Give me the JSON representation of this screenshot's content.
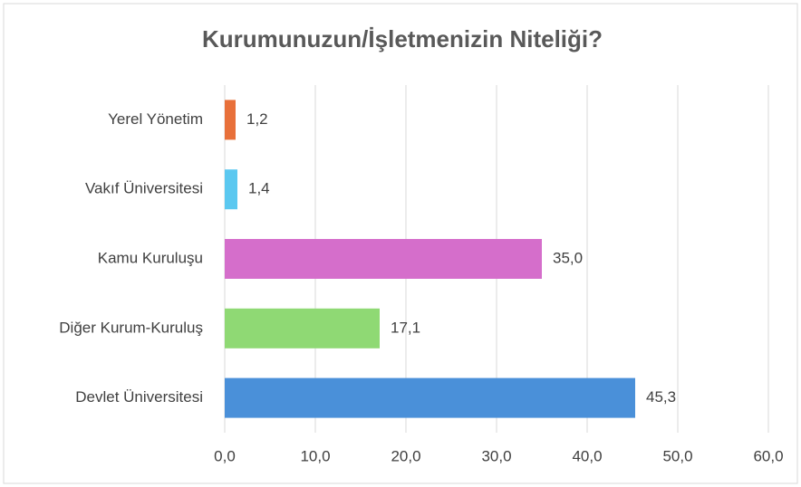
{
  "chart_data": {
    "type": "barh",
    "title": "Kurumunuzun/İşletmenizin Niteliği?",
    "categories": [
      "Yerel Yönetim",
      "Vakıf Üniversitesi",
      "Kamu Kuruluşu",
      "Diğer Kurum-Kuruluş",
      "Devlet Üniversitesi"
    ],
    "values": [
      1.2,
      1.4,
      35.0,
      17.1,
      45.3
    ],
    "value_labels": [
      "1,2",
      "1,4",
      "35,0",
      "17,1",
      "45,3"
    ],
    "colors": [
      "#e8703a",
      "#5bc8f0",
      "#d56ecb",
      "#8fd974",
      "#4a90d9"
    ],
    "xlim": [
      0,
      60
    ],
    "xticks": [
      {
        "value": 0,
        "label": "0,0"
      },
      {
        "value": 10,
        "label": "10,0"
      },
      {
        "value": 20,
        "label": "20,0"
      },
      {
        "value": 30,
        "label": "30,0"
      },
      {
        "value": 40,
        "label": "40,0"
      },
      {
        "value": 50,
        "label": "50,0"
      },
      {
        "value": 60,
        "label": "60,0"
      }
    ],
    "grid": true
  }
}
